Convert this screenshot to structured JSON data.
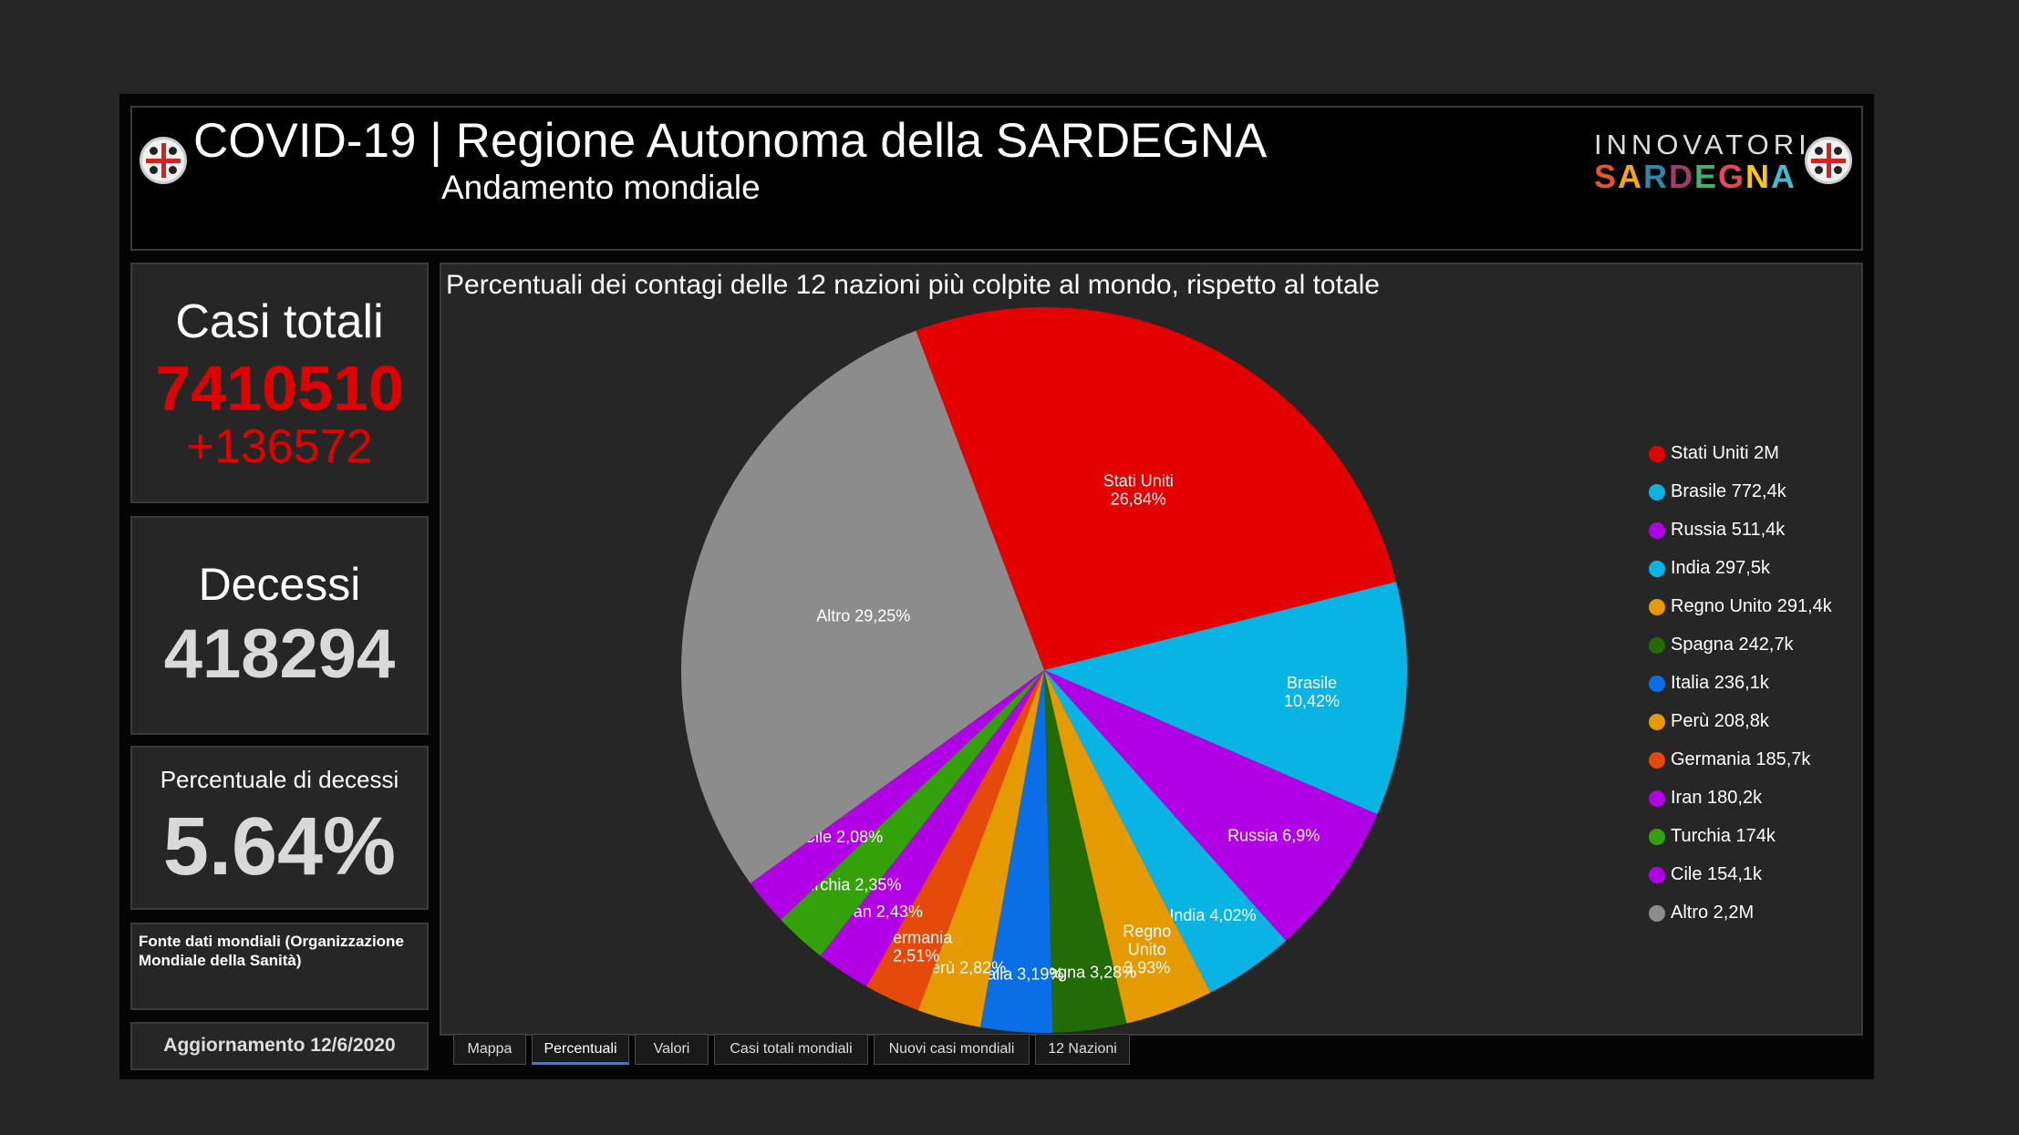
{
  "header": {
    "title": "COVID-19 | Regione Autonoma della SARDEGNA",
    "subtitle": "Andamento mondiale",
    "logo_top": "INNOVATORI",
    "logo_bottom": "SARDEGNA",
    "logo_letter_colors": [
      "#e4572e",
      "#f3a712",
      "#2e86ab",
      "#a23b72",
      "#3bb273",
      "#e84855",
      "#f9c80e",
      "#43bccd"
    ]
  },
  "kpis": {
    "total_cases_label": "Casi totali",
    "total_cases_value": "7410510",
    "total_cases_delta": "+136572",
    "deaths_label": "Decessi",
    "deaths_value": "418294",
    "death_pct_label": "Percentuale di decessi",
    "death_pct_value": "5.64%",
    "source_text": "Fonte dati mondiali (Organizzazione Mondiale della Sanità)",
    "update_text": "Aggiornamento 12/6/2020"
  },
  "tabs": [
    {
      "label": "Mappa",
      "active": false
    },
    {
      "label": "Percentuali",
      "active": true
    },
    {
      "label": "Valori",
      "active": false
    },
    {
      "label": "Casi totali mondiali",
      "active": false
    },
    {
      "label": "Nuovi casi mondiali",
      "active": false
    },
    {
      "label": "12 Nazioni",
      "active": false
    }
  ],
  "colors": {
    "accent_red": "#e10000",
    "kpi_gray": "#d9d9d9",
    "tab_active": "#2f7fe0"
  },
  "chart_data": {
    "type": "pie",
    "title": "Percentuali dei contagi delle 12 nazioni più colpite al mondo, rispetto al totale",
    "legend_position": "right",
    "slices": [
      {
        "name": "Stati Uniti",
        "value": 26.84,
        "label": "Stati Uniti 26,84%",
        "legend": "Stati Uniti 2M",
        "color": "#e50000"
      },
      {
        "name": "Brasile",
        "value": 10.42,
        "label": "Brasile 10,42%",
        "legend": "Brasile 772,4k",
        "color": "#08b4e4"
      },
      {
        "name": "Russia",
        "value": 6.9,
        "label": "Russia 6,9%",
        "legend": "Russia 511,4k",
        "color": "#b200e6"
      },
      {
        "name": "India",
        "value": 4.02,
        "label": "India 4,02%",
        "legend": "India 297,5k",
        "color": "#08b4e4"
      },
      {
        "name": "Regno Unito",
        "value": 3.93,
        "label": "Regno Unito 3,93%",
        "legend": "Regno Unito 291,4k",
        "color": "#e59a00"
      },
      {
        "name": "Spagna",
        "value": 3.28,
        "label": "Spagna 3,28%",
        "legend": "Spagna 242,7k",
        "color": "#236b06"
      },
      {
        "name": "Italia",
        "value": 3.19,
        "label": "Italia 3,19%",
        "legend": "Italia 236,1k",
        "color": "#0a6ee6"
      },
      {
        "name": "Perù",
        "value": 2.82,
        "label": "Perù 2,82%",
        "legend": "Perù 208,8k",
        "color": "#e59a00"
      },
      {
        "name": "Germania",
        "value": 2.51,
        "label": "Germania 2,51%",
        "legend": "Germania 185,7k",
        "color": "#e64a0a"
      },
      {
        "name": "Iran",
        "value": 2.43,
        "label": "Iran 2,43%",
        "legend": "Iran 180,2k",
        "color": "#b200e6"
      },
      {
        "name": "Turchia",
        "value": 2.35,
        "label": "Turchia 2,35%",
        "legend": "Turchia 174k",
        "color": "#34a10a"
      },
      {
        "name": "Cile",
        "value": 2.08,
        "label": "Cile 2,08%",
        "legend": "Cile 154,1k",
        "color": "#b200e6"
      },
      {
        "name": "Altro",
        "value": 29.25,
        "label": "Altro 29,25%",
        "legend": "Altro 2,2M",
        "color": "#8c8c8c"
      }
    ]
  }
}
